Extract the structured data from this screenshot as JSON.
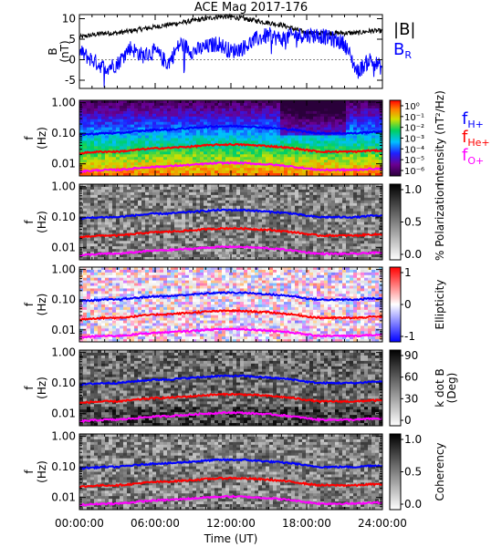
{
  "title": "ACE Mag 2017-176",
  "xaxis": {
    "label": "Time (UT)",
    "tick_labels": [
      "00:00:00",
      "06:00:00",
      "12:00:00",
      "18:00:00",
      "24:00:00"
    ],
    "range_hours": [
      0,
      24
    ]
  },
  "legend_top": {
    "B": {
      "text": "|B|",
      "color": "#000000"
    },
    "BR": {
      "text": "B",
      "sub": "R",
      "color": "#0000ff"
    }
  },
  "legend_gyro": [
    {
      "text": "f",
      "sub": "H+",
      "color": "#0000ff"
    },
    {
      "text": "f",
      "sub": "He+",
      "color": "#ff0000"
    },
    {
      "text": "f",
      "sub": "O+",
      "color": "#ff00ff"
    }
  ],
  "panel_freq": {
    "ylabel_line1": "f",
    "ylabel_line2": "(Hz)",
    "tick_labels": [
      "1.00",
      "0.10",
      "0.01"
    ]
  },
  "chart_data": [
    {
      "type": "line",
      "title": "ACE Mag 2017-176",
      "ylabel_line1": "B",
      "ylabel_line2": "(nT)",
      "ylim": [
        -7,
        11
      ],
      "y_tick_labels": [
        "10",
        "5",
        "0",
        "-5"
      ],
      "x_unit": "hours UT",
      "series": [
        {
          "name": "|B|",
          "color": "#000000",
          "x": [
            0,
            1,
            2,
            3,
            4,
            5,
            6,
            7,
            8,
            9,
            10,
            11,
            12,
            13,
            14,
            15,
            16,
            17,
            18,
            19,
            20,
            21,
            22,
            23,
            24
          ],
          "y": [
            5.5,
            6,
            6.5,
            6.5,
            7,
            7.5,
            8,
            8.5,
            9,
            9.5,
            10,
            10.5,
            10.5,
            10,
            9.5,
            9,
            8.5,
            7.5,
            6.5,
            6.5,
            6.5,
            6.5,
            6.5,
            7,
            7
          ]
        },
        {
          "name": "BR",
          "color": "#0000ff",
          "x": [
            0,
            1,
            2,
            3,
            4,
            5,
            6,
            7,
            8,
            9,
            10,
            11,
            12,
            13,
            14,
            15,
            16,
            17,
            18,
            19,
            20,
            21,
            22,
            23,
            24
          ],
          "y": [
            2,
            0,
            -2,
            -1,
            3,
            1,
            2,
            -1,
            4,
            2,
            3,
            4,
            2,
            3,
            5,
            6,
            5,
            6,
            6,
            6,
            5,
            4,
            -3,
            0,
            -2
          ]
        }
      ]
    },
    {
      "type": "heatmap",
      "colorbar_label": "Intensity (nT²/Hz)",
      "colorbar_ticks": [
        "10⁰",
        "10⁻¹",
        "10⁻²",
        "10⁻³",
        "10⁻⁴",
        "10⁻⁵",
        "10⁻⁶"
      ],
      "ylim_hz": [
        0.004,
        1.2
      ],
      "y_scale": "log"
    },
    {
      "type": "heatmap",
      "colorbar_label": "% Polarization",
      "colorbar_ticks": [
        "1.0",
        "0.5",
        "0.0"
      ],
      "ylim_hz": [
        0.004,
        1.2
      ],
      "y_scale": "log"
    },
    {
      "type": "heatmap",
      "colorbar_label": "Ellipticity",
      "colorbar_ticks": [
        "1",
        "0",
        "-1"
      ],
      "ylim_hz": [
        0.004,
        1.2
      ],
      "y_scale": "log"
    },
    {
      "type": "heatmap",
      "colorbar_label": "k dot B",
      "colorbar_label2": "(Deg)",
      "colorbar_ticks": [
        "90",
        "60",
        "30",
        "0"
      ],
      "ylim_hz": [
        0.004,
        1.2
      ],
      "y_scale": "log"
    },
    {
      "type": "heatmap",
      "colorbar_label": "Coherency",
      "colorbar_ticks": [
        "1.0",
        "0.5",
        "0.0"
      ],
      "ylim_hz": [
        0.004,
        1.2
      ],
      "y_scale": "log"
    },
    {
      "type": "line",
      "role": "gyrofrequency overlay (all spectral panels)",
      "x_unit": "hours UT",
      "y_unit": "Hz",
      "series": [
        {
          "name": "fH+",
          "color": "#0000ff",
          "x": [
            0,
            1,
            2,
            3,
            4,
            5,
            6,
            7,
            8,
            9,
            10,
            11,
            12,
            13,
            14,
            15,
            16,
            17,
            18,
            19,
            20,
            21,
            22,
            23,
            24
          ],
          "y": [
            0.09,
            0.095,
            0.1,
            0.1,
            0.11,
            0.12,
            0.13,
            0.13,
            0.14,
            0.15,
            0.16,
            0.17,
            0.17,
            0.17,
            0.16,
            0.15,
            0.14,
            0.13,
            0.11,
            0.1,
            0.1,
            0.1,
            0.1,
            0.11,
            0.11
          ]
        },
        {
          "name": "fHe+",
          "color": "#ff0000",
          "x": [
            0,
            1,
            2,
            3,
            4,
            5,
            6,
            7,
            8,
            9,
            10,
            11,
            12,
            13,
            14,
            15,
            16,
            17,
            18,
            19,
            20,
            21,
            22,
            23,
            24
          ],
          "y": [
            0.022,
            0.024,
            0.025,
            0.025,
            0.027,
            0.03,
            0.032,
            0.033,
            0.035,
            0.037,
            0.04,
            0.042,
            0.043,
            0.042,
            0.04,
            0.038,
            0.035,
            0.032,
            0.028,
            0.025,
            0.025,
            0.025,
            0.025,
            0.027,
            0.027
          ]
        },
        {
          "name": "fO+",
          "color": "#ff00ff",
          "x": [
            0,
            1,
            2,
            3,
            4,
            5,
            6,
            7,
            8,
            9,
            10,
            11,
            12,
            13,
            14,
            15,
            16,
            17,
            18,
            19,
            20,
            21,
            22,
            23,
            24
          ],
          "y": [
            0.0056,
            0.006,
            0.0063,
            0.0063,
            0.0068,
            0.0075,
            0.008,
            0.0083,
            0.0088,
            0.0093,
            0.01,
            0.0105,
            0.0108,
            0.0105,
            0.01,
            0.0095,
            0.0088,
            0.008,
            0.007,
            0.0063,
            0.0063,
            0.0063,
            0.0063,
            0.0068,
            0.0068
          ]
        }
      ]
    }
  ]
}
